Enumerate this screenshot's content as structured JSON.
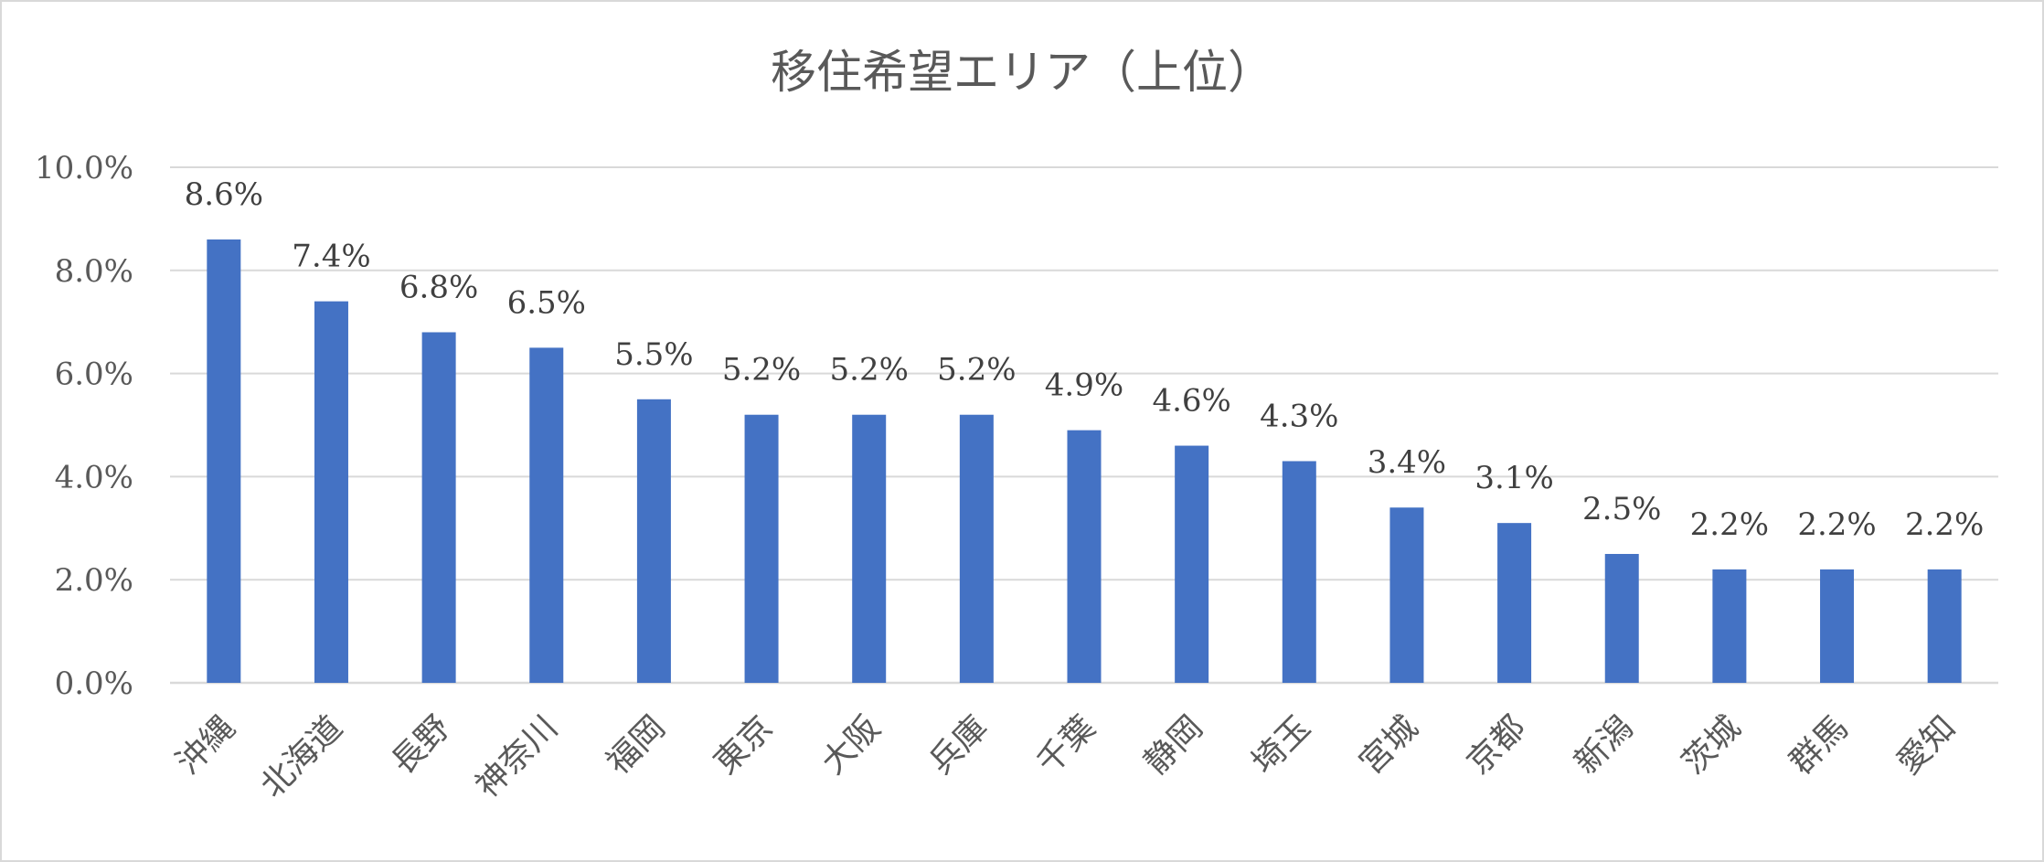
{
  "chart_data": {
    "type": "bar",
    "title": "移住希望エリア（上位）",
    "xlabel": "",
    "ylabel": "",
    "ylim": [
      0,
      10
    ],
    "y_tick_values": [
      0,
      2,
      4,
      6,
      8,
      10
    ],
    "y_tick_labels": [
      "0.0%",
      "2.0%",
      "4.0%",
      "6.0%",
      "8.0%",
      "10.0%"
    ],
    "grid": true,
    "legend": "none",
    "bar_color": "#4472C4",
    "categories": [
      "沖縄",
      "北海道",
      "長野",
      "神奈川",
      "福岡",
      "東京",
      "大阪",
      "兵庫",
      "千葉",
      "静岡",
      "埼玉",
      "宮城",
      "京都",
      "新潟",
      "茨城",
      "群馬",
      "愛知"
    ],
    "values": [
      8.6,
      7.4,
      6.8,
      6.5,
      5.5,
      5.2,
      5.2,
      5.2,
      4.9,
      4.6,
      4.3,
      3.4,
      3.1,
      2.5,
      2.2,
      2.2,
      2.2
    ],
    "data_labels": [
      "8.6%",
      "7.4%",
      "6.8%",
      "6.5%",
      "5.5%",
      "5.2%",
      "5.2%",
      "5.2%",
      "4.9%",
      "4.6%",
      "4.3%",
      "3.4%",
      "3.1%",
      "2.5%",
      "2.2%",
      "2.2%",
      "2.2%"
    ]
  }
}
